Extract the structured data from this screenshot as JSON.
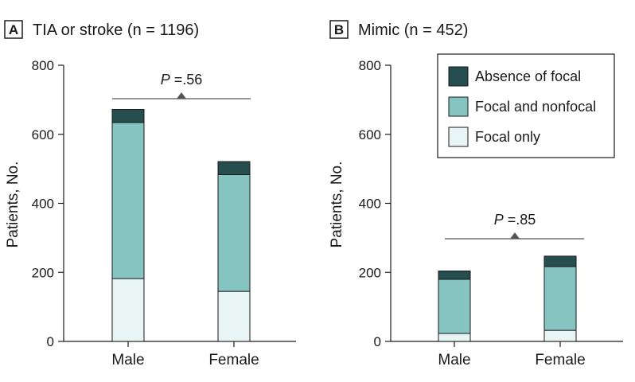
{
  "colors": {
    "absence": "#264e4e",
    "focal_nonfocal": "#86c4c2",
    "focal_only": "#e9f5f5",
    "axis": "#1a1a1a",
    "bracket": "#555555"
  },
  "legend": {
    "items": [
      {
        "label": "Absence of focal",
        "color": "#264e4e"
      },
      {
        "label": "Focal and nonfocal",
        "color": "#86c4c2"
      },
      {
        "label": "Focal only",
        "color": "#e9f5f5"
      }
    ]
  },
  "chart_data": [
    {
      "type": "bar",
      "stacked": true,
      "panel_letter": "A",
      "title": "TIA or stroke (n = 1196)",
      "ylabel": "Patients, No.",
      "xlabel": "",
      "ylim": [
        0,
        800
      ],
      "yticks": [
        "0",
        "200",
        "400",
        "600",
        "800"
      ],
      "categories": [
        "Male",
        "Female"
      ],
      "series": [
        {
          "name": "Focal only",
          "values": [
            182,
            145
          ]
        },
        {
          "name": "Focal and nonfocal",
          "values": [
            452,
            338
          ]
        },
        {
          "name": "Absence of focal",
          "values": [
            38,
            38
          ]
        }
      ],
      "annotation": {
        "prefix": "P",
        "value": " =.56"
      }
    },
    {
      "type": "bar",
      "stacked": true,
      "panel_letter": "B",
      "title": "Mimic (n = 452)",
      "ylabel": "Patients, No.",
      "xlabel": "",
      "ylim": [
        0,
        800
      ],
      "yticks": [
        "0",
        "200",
        "400",
        "600",
        "800"
      ],
      "categories": [
        "Male",
        "Female"
      ],
      "series": [
        {
          "name": "Focal only",
          "values": [
            23,
            32
          ]
        },
        {
          "name": "Focal and nonfocal",
          "values": [
            157,
            185
          ]
        },
        {
          "name": "Absence of focal",
          "values": [
            24,
            30
          ]
        }
      ],
      "annotation": {
        "prefix": "P",
        "value": " =.85"
      }
    }
  ]
}
